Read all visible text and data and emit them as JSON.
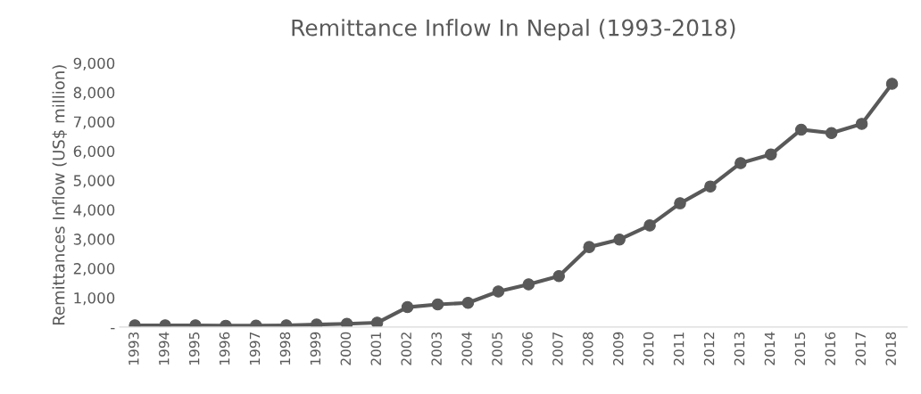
{
  "chart_data": {
    "type": "line",
    "title": "Remittance Inflow In Nepal (1993-2018)",
    "ylabel": "Remittances Inflow (US$ million)",
    "categories": [
      "1993",
      "1994",
      "1995",
      "1996",
      "1997",
      "1998",
      "1999",
      "2000",
      "2001",
      "2002",
      "2003",
      "2004",
      "2005",
      "2006",
      "2007",
      "2008",
      "2009",
      "2010",
      "2011",
      "2012",
      "2013",
      "2014",
      "2015",
      "2016",
      "2017",
      "2018"
    ],
    "series": [
      {
        "color": "#595959",
        "values": [
          57,
          56,
          57,
          44,
          47,
          55,
          83,
          111,
          147,
          678,
          771,
          823,
          1212,
          1453,
          1734,
          2727,
          2983,
          3464,
          4217,
          4793,
          5589,
          5883,
          6730,
          6612,
          6928,
          8294
        ]
      }
    ],
    "ylim": [
      0,
      9000
    ],
    "yticks": [
      {
        "value": 0,
        "label": "-"
      },
      {
        "value": 1000,
        "label": "1,000"
      },
      {
        "value": 2000,
        "label": "2,000"
      },
      {
        "value": 3000,
        "label": "3,000"
      },
      {
        "value": 4000,
        "label": "4,000"
      },
      {
        "value": 5000,
        "label": "5,000"
      },
      {
        "value": 6000,
        "label": "6,000"
      },
      {
        "value": 7000,
        "label": "7,000"
      },
      {
        "value": 8000,
        "label": "8,000"
      },
      {
        "value": 9000,
        "label": "9,000"
      }
    ],
    "grid": false,
    "legend": false,
    "marker": "circle",
    "line_style": "solid"
  }
}
